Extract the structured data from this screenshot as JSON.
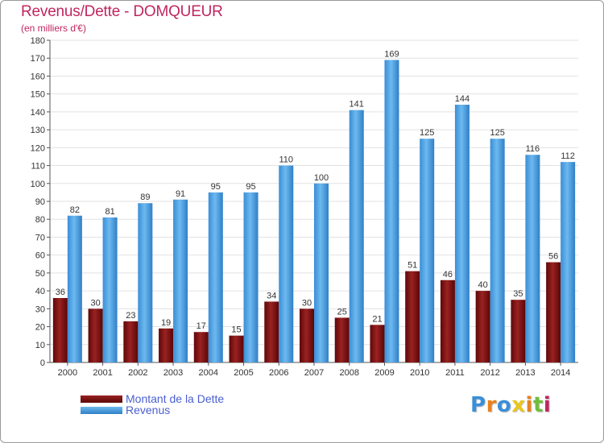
{
  "chart_data": {
    "type": "bar",
    "title": "Revenus/Dette - DOMQUEUR",
    "subtitle": "(en milliers d'€)",
    "xlabel": "",
    "ylabel": "",
    "ylim": [
      0,
      180
    ],
    "ytick_step": 10,
    "grid": true,
    "legend_position": "bottom-left",
    "categories": [
      "2000",
      "2001",
      "2002",
      "2003",
      "2004",
      "2005",
      "2006",
      "2007",
      "2008",
      "2009",
      "2010",
      "2011",
      "2012",
      "2013",
      "2014"
    ],
    "series": [
      {
        "name": "Montant de la Dette",
        "color": "#7a1010",
        "values": [
          36,
          30,
          23,
          19,
          17,
          15,
          34,
          30,
          25,
          21,
          51,
          46,
          40,
          35,
          56
        ]
      },
      {
        "name": "Revenus",
        "color": "#4aa3e8",
        "values": [
          82,
          81,
          89,
          91,
          95,
          95,
          110,
          100,
          141,
          169,
          125,
          144,
          125,
          116,
          112
        ]
      }
    ]
  },
  "logo": {
    "letters": [
      "P",
      "r",
      "o",
      "x",
      "i",
      "t",
      "i"
    ],
    "colors": [
      "#3a8fd8",
      "#e8821e",
      "#3a8fd8",
      "#e8c81e",
      "#e8821e",
      "#6fbe3c",
      "#c0265e"
    ]
  }
}
